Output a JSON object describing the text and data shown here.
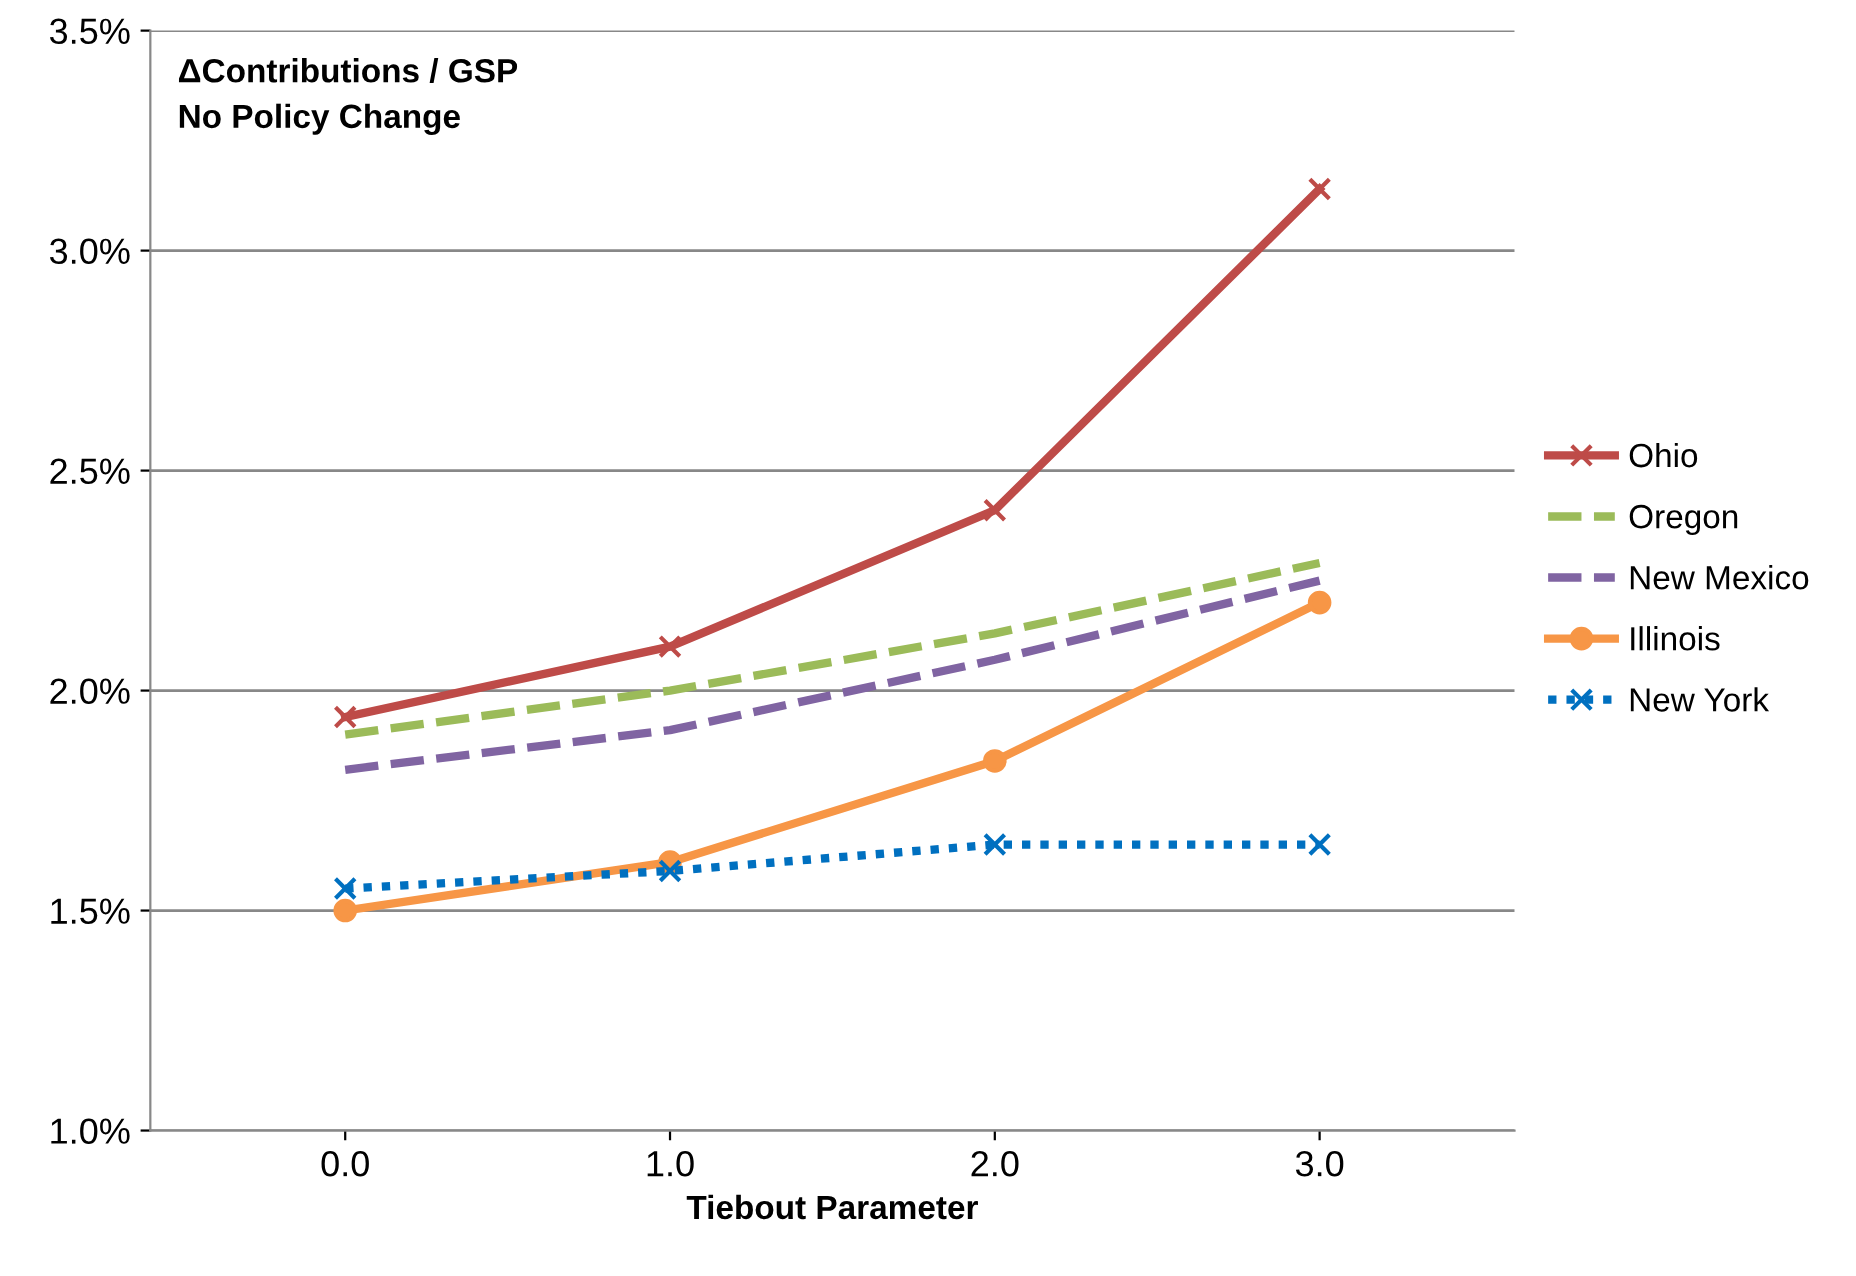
{
  "chart_data": {
    "type": "line",
    "title": "ΔContributions / GSP\nNo Policy Change",
    "xlabel": "Tiebout Parameter",
    "categories": [
      "0.0",
      "1.0",
      "2.0",
      "3.0"
    ],
    "series": [
      {
        "name": "Ohio",
        "color": "#be4b48",
        "values": [
          1.94,
          2.1,
          2.41,
          3.14
        ],
        "marker": "cross",
        "line_style": "solid"
      },
      {
        "name": "Oregon",
        "color": "#9bbb59",
        "values": [
          1.9,
          2.0,
          2.13,
          2.29
        ],
        "marker": "none",
        "line_style": "dashed"
      },
      {
        "name": "New Mexico",
        "color": "#8064a2",
        "values": [
          1.82,
          1.91,
          2.07,
          2.25
        ],
        "marker": "none",
        "line_style": "dashed"
      },
      {
        "name": "Illinois",
        "color": "#f79646",
        "values": [
          1.5,
          1.61,
          1.84,
          2.2
        ],
        "marker": "circle",
        "line_style": "solid"
      },
      {
        "name": "New York",
        "color": "#0070c0",
        "values": [
          1.55,
          1.59,
          1.65,
          1.65
        ],
        "marker": "cross",
        "line_style": "dotted"
      }
    ],
    "ylim": [
      1.0,
      3.5
    ],
    "yticks": [
      {
        "value": 1.0,
        "label": "1.0%"
      },
      {
        "value": 1.5,
        "label": "1.5%"
      },
      {
        "value": 2.0,
        "label": "2.0%"
      },
      {
        "value": 2.5,
        "label": "2.5%"
      },
      {
        "value": 3.0,
        "label": "3.0%"
      },
      {
        "value": 3.5,
        "label": "3.5%"
      }
    ],
    "grid": "y",
    "legend": "right"
  }
}
